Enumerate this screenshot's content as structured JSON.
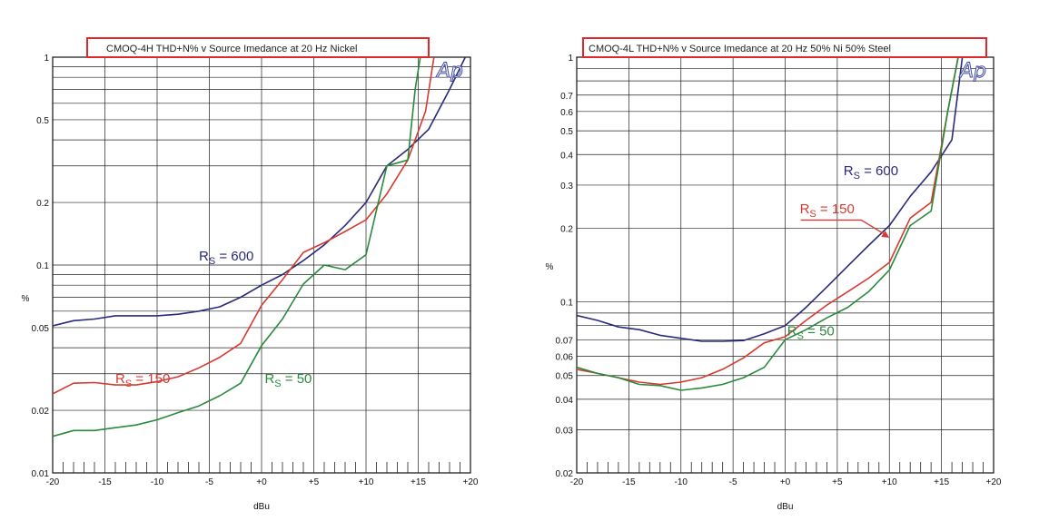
{
  "chart_data": [
    {
      "type": "line",
      "title": "CMOQ-4H THD+N% v Source Imedance at 20 Hz  Nickel",
      "xlabel": "dBu",
      "ylabel": "%",
      "xlim": [
        -20,
        20
      ],
      "ylim": [
        0.01,
        1
      ],
      "yscale": "log",
      "grid": true,
      "logo": "Ap",
      "x_ticks": [
        {
          "v": -20,
          "label": "-20"
        },
        {
          "v": -15,
          "label": "-15"
        },
        {
          "v": -10,
          "label": "-10"
        },
        {
          "v": -5,
          "label": "-5"
        },
        {
          "v": 0,
          "label": "+0"
        },
        {
          "v": 5,
          "label": "+5"
        },
        {
          "v": 10,
          "label": "+10"
        },
        {
          "v": 15,
          "label": "+15"
        },
        {
          "v": 20,
          "label": "+20"
        }
      ],
      "y_ticks": [
        {
          "v": 0.01,
          "label": "0.01"
        },
        {
          "v": 0.02,
          "label": "0.02"
        },
        {
          "v": 0.05,
          "label": "0.05"
        },
        {
          "v": 0.1,
          "label": "0.1"
        },
        {
          "v": 0.2,
          "label": "0.2"
        },
        {
          "v": 0.5,
          "label": "0.5"
        },
        {
          "v": 1,
          "label": "1"
        }
      ],
      "series": [
        {
          "name": "Rs = 600",
          "color": "#2a2a7a",
          "label_main": "R",
          "label_sub": "S",
          "label_rest": " = 600",
          "label_at": [
            -6,
            0.105
          ],
          "x": [
            -20,
            -18,
            -16,
            -14,
            -12,
            -10,
            -8,
            -6,
            -4,
            -2,
            0,
            2,
            4,
            6,
            8,
            10,
            12,
            14,
            16,
            18,
            19.5
          ],
          "y": [
            0.051,
            0.054,
            0.055,
            0.057,
            0.057,
            0.057,
            0.058,
            0.06,
            0.063,
            0.07,
            0.08,
            0.09,
            0.105,
            0.125,
            0.155,
            0.2,
            0.3,
            0.36,
            0.45,
            0.7,
            1.0
          ]
        },
        {
          "name": "Rs = 150",
          "color": "#d63a30",
          "label_main": "R",
          "label_sub": "S",
          "label_rest": " = 150",
          "label_at": [
            -14,
            0.027
          ],
          "x": [
            -20,
            -18,
            -16,
            -14,
            -12,
            -10,
            -8,
            -6,
            -4,
            -2,
            0,
            2,
            4,
            6,
            8,
            10,
            12,
            14,
            15.7,
            16.5
          ],
          "y": [
            0.024,
            0.027,
            0.0272,
            0.0265,
            0.0265,
            0.0275,
            0.029,
            0.032,
            0.036,
            0.042,
            0.064,
            0.085,
            0.115,
            0.128,
            0.145,
            0.165,
            0.22,
            0.32,
            0.55,
            1.0
          ]
        },
        {
          "name": "Rs = 50",
          "color": "#2a8a3c",
          "label_main": "R",
          "label_sub": "S",
          "label_rest": " = 50",
          "label_at": [
            0.3,
            0.027
          ],
          "x": [
            -20,
            -18,
            -16,
            -14,
            -12,
            -10,
            -8,
            -6,
            -4,
            -2,
            0,
            2,
            4,
            6,
            8,
            10,
            12,
            14,
            14.7,
            15.2
          ],
          "y": [
            0.015,
            0.016,
            0.016,
            0.0165,
            0.017,
            0.018,
            0.0195,
            0.021,
            0.0235,
            0.027,
            0.041,
            0.055,
            0.081,
            0.1,
            0.095,
            0.112,
            0.3,
            0.32,
            0.7,
            1.0
          ]
        }
      ],
      "annotations": []
    },
    {
      "type": "line",
      "title": "CMOQ-4L THD+N% v Source Imedance at 20 Hz  50% Ni 50% Steel",
      "xlabel": "dBu",
      "ylabel": "%",
      "xlim": [
        -20,
        20
      ],
      "ylim": [
        0.02,
        1
      ],
      "yscale": "log",
      "grid": true,
      "logo": "Ap",
      "x_ticks": [
        {
          "v": -20,
          "label": "-20"
        },
        {
          "v": -15,
          "label": "-15"
        },
        {
          "v": -10,
          "label": "-10"
        },
        {
          "v": -5,
          "label": "-5"
        },
        {
          "v": 0,
          "label": "+0"
        },
        {
          "v": 5,
          "label": "+5"
        },
        {
          "v": 10,
          "label": "+10"
        },
        {
          "v": 15,
          "label": "+15"
        },
        {
          "v": 20,
          "label": "+20"
        }
      ],
      "y_ticks": [
        {
          "v": 0.02,
          "label": "0.02"
        },
        {
          "v": 0.03,
          "label": "0.03"
        },
        {
          "v": 0.04,
          "label": "0.04"
        },
        {
          "v": 0.05,
          "label": "0.05"
        },
        {
          "v": 0.06,
          "label": "0.06"
        },
        {
          "v": 0.07,
          "label": "0.07"
        },
        {
          "v": 0.1,
          "label": "0.1"
        },
        {
          "v": 0.2,
          "label": "0.2"
        },
        {
          "v": 0.3,
          "label": "0.3"
        },
        {
          "v": 0.4,
          "label": "0.4"
        },
        {
          "v": 0.5,
          "label": "0.5"
        },
        {
          "v": 0.6,
          "label": "0.6"
        },
        {
          "v": 0.7,
          "label": "0.7"
        },
        {
          "v": 1,
          "label": "1"
        }
      ],
      "series": [
        {
          "name": "Rs = 600",
          "color": "#2a2a7a",
          "label_main": "R",
          "label_sub": "S",
          "label_rest": " = 600",
          "label_at": [
            5.6,
            0.33
          ],
          "x": [
            -20,
            -18,
            -16,
            -14,
            -12,
            -10,
            -8,
            -6,
            -4,
            -2,
            0,
            2,
            4,
            6,
            8,
            10,
            12,
            14,
            16,
            17
          ],
          "y": [
            0.088,
            0.084,
            0.079,
            0.077,
            0.073,
            0.071,
            0.069,
            0.069,
            0.0695,
            0.074,
            0.08,
            0.095,
            0.115,
            0.14,
            0.17,
            0.205,
            0.27,
            0.34,
            0.46,
            1.0
          ]
        },
        {
          "name": "Rs = 150",
          "color": "#d63a30",
          "label_main": "R",
          "label_sub": "S",
          "label_rest": " = 150",
          "label_at": [
            1.4,
            0.23
          ],
          "x": [
            -20,
            -18,
            -16,
            -14,
            -12,
            -10,
            -8,
            -6,
            -4,
            -2,
            0,
            2,
            4,
            6,
            8,
            10,
            12,
            14,
            15.6,
            16.6
          ],
          "y": [
            0.053,
            0.051,
            0.049,
            0.047,
            0.046,
            0.047,
            0.049,
            0.053,
            0.059,
            0.068,
            0.072,
            0.084,
            0.097,
            0.11,
            0.125,
            0.145,
            0.22,
            0.255,
            0.6,
            1.0
          ]
        },
        {
          "name": "Rs = 50",
          "color": "#2a8a3c",
          "label_main": "R",
          "label_sub": "S",
          "label_rest": " = 50",
          "label_at": [
            0.2,
            0.073
          ],
          "x": [
            -20,
            -18,
            -16,
            -14,
            -12,
            -10,
            -8,
            -6,
            -4,
            -2,
            0,
            2,
            4,
            6,
            8,
            10,
            12,
            14,
            15.6,
            16.6
          ],
          "y": [
            0.054,
            0.051,
            0.049,
            0.046,
            0.0455,
            0.0435,
            0.0445,
            0.046,
            0.049,
            0.054,
            0.07,
            0.077,
            0.086,
            0.095,
            0.11,
            0.135,
            0.205,
            0.235,
            0.6,
            1.0
          ]
        }
      ],
      "annotations": [
        {
          "type": "arrow",
          "color": "#d63a30",
          "from": [
            1.5,
            0.216
          ],
          "elbow": [
            7.3,
            0.216
          ],
          "to": [
            10,
            0.183
          ]
        }
      ]
    }
  ]
}
